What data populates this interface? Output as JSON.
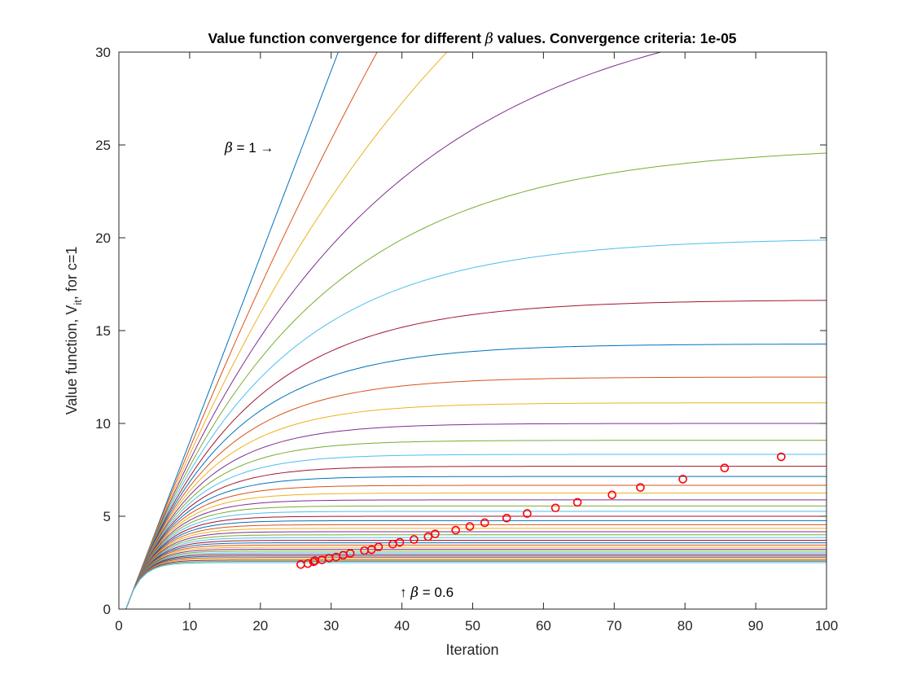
{
  "chart_data": {
    "type": "line",
    "title": "Value function convergence for different β values. Convergence criteria: 1e-05",
    "title_parts": {
      "prefix": "Value function convergence for different ",
      "symbol": "β",
      "suffix": " values. Convergence criteria: 1e-05"
    },
    "xlabel": "Iteration",
    "ylabel": {
      "prefix": "Value function, V",
      "subscript": "it",
      "suffix": ", for c=1"
    },
    "xlim": [
      0,
      100
    ],
    "ylim": [
      0,
      30
    ],
    "xticks": [
      "0",
      "10",
      "20",
      "30",
      "40",
      "50",
      "60",
      "70",
      "80",
      "90",
      "100"
    ],
    "yticks": [
      "0",
      "5",
      "10",
      "15",
      "20",
      "25",
      "30"
    ],
    "grid": false,
    "series_colors": [
      "#0072BD",
      "#D95319",
      "#EDB120",
      "#7E2F8E",
      "#77AC30",
      "#4DBEEE",
      "#A2142F"
    ],
    "beta_values": [
      1.0,
      0.99,
      0.98,
      0.97,
      0.96,
      0.95,
      0.94,
      0.93,
      0.92,
      0.91,
      0.9,
      0.89,
      0.88,
      0.87,
      0.86,
      0.85,
      0.84,
      0.83,
      0.82,
      0.81,
      0.8,
      0.79,
      0.78,
      0.77,
      0.76,
      0.75,
      0.74,
      0.73,
      0.72,
      0.71,
      0.7,
      0.69,
      0.68,
      0.67,
      0.66,
      0.65,
      0.64,
      0.63,
      0.62,
      0.61,
      0.6
    ],
    "markers": {
      "color": "#FF0000",
      "points": [
        {
          "x": 93.6,
          "y": 8.2
        },
        {
          "x": 85.6,
          "y": 7.6
        },
        {
          "x": 79.7,
          "y": 7.0
        },
        {
          "x": 73.7,
          "y": 6.55
        },
        {
          "x": 69.7,
          "y": 6.15
        },
        {
          "x": 64.8,
          "y": 5.75
        },
        {
          "x": 61.7,
          "y": 5.45
        },
        {
          "x": 57.7,
          "y": 5.15
        },
        {
          "x": 54.8,
          "y": 4.9
        },
        {
          "x": 51.7,
          "y": 4.65
        },
        {
          "x": 49.6,
          "y": 4.45
        },
        {
          "x": 47.6,
          "y": 4.25
        },
        {
          "x": 44.7,
          "y": 4.05
        },
        {
          "x": 43.7,
          "y": 3.9
        },
        {
          "x": 41.7,
          "y": 3.75
        },
        {
          "x": 39.7,
          "y": 3.6
        },
        {
          "x": 38.7,
          "y": 3.5
        },
        {
          "x": 36.7,
          "y": 3.35
        },
        {
          "x": 35.7,
          "y": 3.2
        },
        {
          "x": 34.7,
          "y": 3.15
        },
        {
          "x": 32.7,
          "y": 3.0
        },
        {
          "x": 31.7,
          "y": 2.9
        },
        {
          "x": 30.7,
          "y": 2.8
        },
        {
          "x": 29.7,
          "y": 2.75
        },
        {
          "x": 28.7,
          "y": 2.65
        },
        {
          "x": 27.7,
          "y": 2.6
        },
        {
          "x": 27.5,
          "y": 2.55
        },
        {
          "x": 26.7,
          "y": 2.45
        },
        {
          "x": 25.7,
          "y": 2.4
        }
      ]
    },
    "annotations": [
      {
        "id": "beta-high",
        "pre": "",
        "symbol": "β",
        "text": " = 1 →",
        "x": 15,
        "y": 25
      },
      {
        "id": "beta-low",
        "pre": "↑ ",
        "symbol": "β",
        "text": " = 0.6",
        "x": 40,
        "y": 0.9
      }
    ]
  }
}
